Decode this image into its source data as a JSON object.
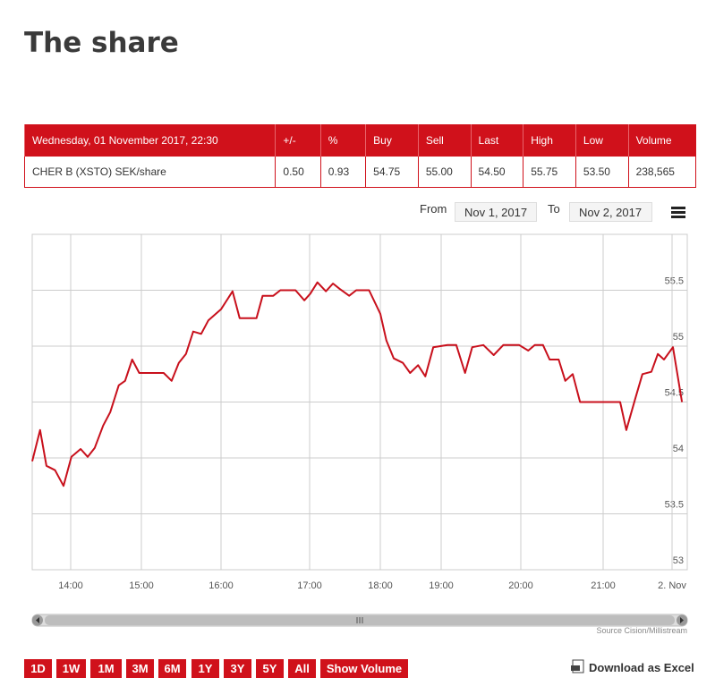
{
  "title": "The share",
  "table": {
    "headers": [
      "Wednesday, 01 November 2017, 22:30",
      "+/-",
      "%",
      "Buy",
      "Sell",
      "Last",
      "High",
      "Low",
      "Volume"
    ],
    "rows": [
      [
        "CHER B (XSTO) SEK/share",
        "0.50",
        "0.93",
        "54.75",
        "55.00",
        "54.50",
        "55.75",
        "53.50",
        "238,565"
      ]
    ]
  },
  "range": {
    "from_label": "From",
    "from": "Nov 1, 2017",
    "to_label": "To",
    "to": "Nov 2, 2017"
  },
  "chart_data": {
    "type": "line",
    "color": "#c8101c",
    "grid": true,
    "x": [
      13.46,
      13.57,
      13.66,
      13.78,
      13.9,
      14.01,
      14.14,
      14.24,
      14.34,
      14.46,
      14.56,
      14.68,
      14.77,
      14.87,
      14.97,
      15.28,
      15.38,
      15.47,
      15.56,
      15.65,
      15.75,
      15.84,
      16.0,
      16.13,
      16.21,
      16.4,
      16.47,
      16.59,
      16.67,
      16.84,
      16.94,
      17.01,
      17.11,
      17.23,
      17.33,
      17.43,
      17.56,
      17.66,
      17.84,
      18.0,
      18.1,
      18.22,
      18.37,
      18.49,
      18.62,
      18.74,
      18.87,
      19.08,
      19.19,
      19.3,
      19.39,
      19.53,
      19.66,
      19.78,
      19.98,
      20.09,
      20.17,
      20.27,
      20.35,
      20.46,
      20.54,
      20.63,
      20.72,
      21.74,
      22.01,
      22.4,
      22.71,
      23.1,
      23.38,
      23.65,
      24.04,
      24.43
    ],
    "values": [
      53.97,
      54.25,
      53.93,
      53.89,
      53.75,
      54.01,
      54.08,
      54.01,
      54.09,
      54.29,
      54.41,
      54.65,
      54.69,
      54.88,
      54.76,
      54.76,
      54.69,
      54.85,
      54.93,
      55.13,
      55.11,
      55.23,
      55.33,
      55.49,
      55.25,
      55.25,
      55.45,
      55.45,
      55.5,
      55.5,
      55.41,
      55.47,
      55.57,
      55.49,
      55.56,
      55.51,
      55.45,
      55.5,
      55.5,
      55.29,
      55.05,
      54.89,
      54.85,
      54.76,
      54.83,
      54.73,
      54.99,
      55.01,
      55.01,
      54.76,
      54.99,
      55.01,
      54.92,
      55.01,
      55.01,
      54.96,
      55.01,
      55.01,
      54.88,
      54.88,
      54.69,
      54.75,
      54.5,
      54.5,
      54.25,
      54.53,
      54.75,
      54.77,
      54.93,
      54.88,
      54.99,
      54.5
    ],
    "xlim": [
      13.46,
      24.66
    ],
    "xticks": [
      {
        "value": 14,
        "label": "14:00"
      },
      {
        "value": 15,
        "label": "15:00"
      },
      {
        "value": 16,
        "label": "16:00"
      },
      {
        "value": 17,
        "label": "17:00"
      },
      {
        "value": 18,
        "label": "18:00"
      },
      {
        "value": 19,
        "label": "19:00"
      },
      {
        "value": 20,
        "label": "20:00"
      },
      {
        "value": 21,
        "label": "21:00"
      },
      {
        "value": 24,
        "label": "2. Nov"
      }
    ],
    "ylim": [
      53,
      56
    ],
    "yticks": [
      53,
      53.5,
      54,
      54.5,
      55,
      55.5
    ]
  },
  "source": "Source Cision/Millistream",
  "buttons": [
    "1D",
    "1W",
    "1M",
    "3M",
    "6M",
    "1Y",
    "3Y",
    "5Y",
    "All",
    "Show Volume"
  ],
  "download": "Download as Excel"
}
